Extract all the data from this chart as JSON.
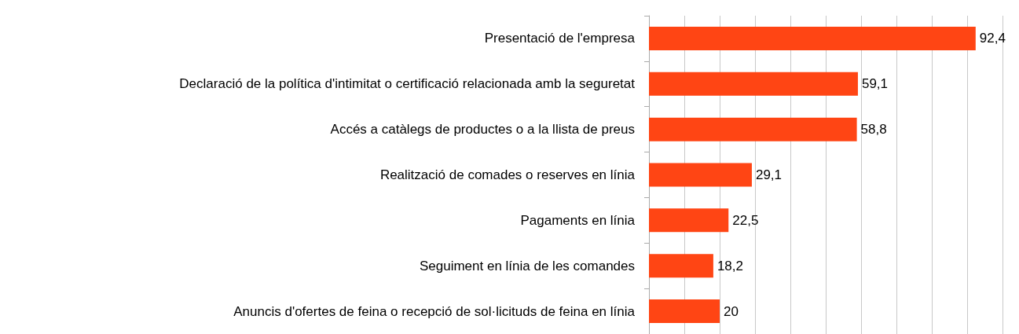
{
  "chart_data": {
    "type": "bar",
    "orientation": "horizontal",
    "categories": [
      "Presentació de l'empresa",
      "Declaració de la política d'intimitat o certificació relacionada amb la seguretat",
      "Accés a catàlegs de productes o a la llista de preus",
      "Realització de comades o reserves en línia",
      "Pagaments en línia",
      "Seguiment en línia de les comandes",
      "Anuncis d'ofertes de feina o recepció de sol·licituds de feina en línia"
    ],
    "values": [
      92.4,
      59.1,
      58.8,
      29.1,
      22.5,
      18.2,
      20
    ],
    "value_labels": [
      "92,4",
      "59,1",
      "58,8",
      "29,1",
      "22,5",
      "18,2",
      "20"
    ],
    "color": "#ff4514",
    "xlim": [
      0,
      100
    ],
    "xticks": [
      {
        "value": 0,
        "label": null
      },
      {
        "value": 10,
        "label": null
      },
      {
        "value": 20,
        "label": null
      },
      {
        "value": 30,
        "label": null
      },
      {
        "value": 40,
        "label": null
      },
      {
        "value": 50,
        "label": null
      },
      {
        "value": 60,
        "label": null
      },
      {
        "value": 70,
        "label": null
      },
      {
        "value": 80,
        "label": null
      },
      {
        "value": 90,
        "label": null
      },
      {
        "value": 100,
        "label": null
      }
    ],
    "grid": "x",
    "tick_labels": "y"
  }
}
